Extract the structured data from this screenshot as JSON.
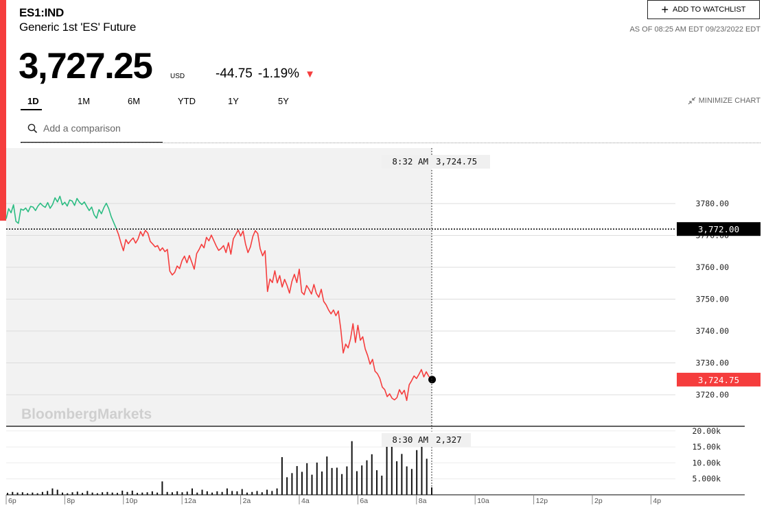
{
  "header": {
    "ticker": "ES1:IND",
    "name": "Generic 1st 'ES' Future",
    "watchlist_label": "ADD TO WATCHLIST",
    "as_of": "AS OF 08:25 AM EDT 09/23/2022 EDT",
    "price": "3,727.25",
    "currency": "USD",
    "change": "-44.75",
    "change_pct": "-1.19%"
  },
  "periods": [
    "1D",
    "1M",
    "6M",
    "YTD",
    "1Y",
    "5Y"
  ],
  "active_period": "1D",
  "minimize_label": "MINIMIZE CHART",
  "comparison_placeholder": "Add a comparison",
  "colors": {
    "up": "#2bbc82",
    "down": "#f53d3d",
    "accent": "#f53d3d"
  },
  "chart_data": [
    {
      "type": "line",
      "x_ticks": [
        "6p",
        "8p",
        "10p",
        "12a",
        "2a",
        "4a",
        "6a",
        "8a",
        "10a",
        "12p",
        "2p",
        "4p"
      ],
      "y_ticks": [
        3720,
        3730,
        3740,
        3750,
        3760,
        3770,
        3780
      ],
      "y_tick_labels": [
        "3720.00",
        "3730.00",
        "3740.00",
        "3750.00",
        "3760.00",
        "3770.00",
        "3780.00"
      ],
      "ylim": [
        3713,
        3793
      ],
      "prev_close": 3772.0,
      "prev_close_label": "3,772.00",
      "last_value": 3724.75,
      "last_label": "3,724.75",
      "crosshair": {
        "time": "8:32 AM",
        "value": "3,724.75"
      },
      "watermark": "BloombergMarkets",
      "series": [
        {
          "points": [
            [
              "6:00p",
              3775.2
            ],
            [
              "6:05p",
              3778.4
            ],
            [
              "6:10p",
              3777.1
            ],
            [
              "6:15p",
              3779.6
            ],
            [
              "6:20p",
              3774.4
            ],
            [
              "6:25p",
              3773.8
            ],
            [
              "6:30p",
              3778.3
            ],
            [
              "6:35p",
              3777.9
            ],
            [
              "6:40p",
              3778.6
            ],
            [
              "6:45p",
              3777.4
            ],
            [
              "6:50p",
              3779.1
            ],
            [
              "6:55p",
              3778.9
            ],
            [
              "7:00p",
              3777.8
            ],
            [
              "7:05p",
              3779.2
            ],
            [
              "7:10p",
              3780.1
            ],
            [
              "7:15p",
              3779.3
            ],
            [
              "7:20p",
              3778.8
            ],
            [
              "7:25p",
              3780.3
            ],
            [
              "7:30p",
              3778.5
            ],
            [
              "7:35p",
              3779.7
            ],
            [
              "7:40p",
              3781.8
            ],
            [
              "7:45p",
              3780.5
            ],
            [
              "7:50p",
              3782.3
            ],
            [
              "7:55p",
              3779.6
            ],
            [
              "8:00p",
              3780.4
            ],
            [
              "8:05p",
              3779.2
            ],
            [
              "8:10p",
              3781.1
            ],
            [
              "8:15p",
              3780.8
            ],
            [
              "8:20p",
              3779.4
            ],
            [
              "8:25p",
              3781.6
            ],
            [
              "8:30p",
              3780.4
            ],
            [
              "8:35p",
              3779.7
            ],
            [
              "8:40p",
              3780.5
            ],
            [
              "8:45p",
              3779.1
            ],
            [
              "8:50p",
              3777.8
            ],
            [
              "8:55p",
              3778.9
            ],
            [
              "9:00p",
              3776.5
            ],
            [
              "9:05p",
              3775.4
            ],
            [
              "9:10p",
              3778.1
            ],
            [
              "9:15p",
              3776.8
            ],
            [
              "9:20p",
              3778.7
            ],
            [
              "9:25p",
              3780.1
            ],
            [
              "9:30p",
              3778.4
            ],
            [
              "9:35p",
              3775.9
            ],
            [
              "9:40p",
              3774.1
            ],
            [
              "9:45p",
              3772.3
            ],
            [
              "9:50p",
              3770.3
            ],
            [
              "9:55p",
              3767.6
            ],
            [
              "10:00p",
              3765.2
            ],
            [
              "10:05p",
              3768.7
            ],
            [
              "10:10p",
              3767.4
            ],
            [
              "10:15p",
              3768.4
            ],
            [
              "10:20p",
              3769.2
            ],
            [
              "10:25p",
              3767.6
            ],
            [
              "10:30p",
              3768.9
            ],
            [
              "10:35p",
              3771.2
            ],
            [
              "10:40p",
              3769.8
            ],
            [
              "10:45p",
              3771.6
            ],
            [
              "10:50p",
              3770.7
            ],
            [
              "10:55p",
              3768.1
            ],
            [
              "11:00p",
              3767.3
            ],
            [
              "11:05p",
              3766.4
            ],
            [
              "11:10p",
              3766.8
            ],
            [
              "11:15p",
              3765.2
            ],
            [
              "11:20p",
              3766.1
            ],
            [
              "11:25p",
              3764.9
            ],
            [
              "11:30p",
              3765.6
            ],
            [
              "11:35p",
              3758.8
            ],
            [
              "11:40p",
              3757.6
            ],
            [
              "11:45p",
              3758.4
            ],
            [
              "11:50p",
              3760.4
            ],
            [
              "11:55p",
              3759.6
            ],
            [
              "12:00a",
              3762.1
            ],
            [
              "12:05a",
              3763.5
            ],
            [
              "12:10a",
              3761.4
            ],
            [
              "12:15a",
              3763.7
            ],
            [
              "12:20a",
              3761.6
            ],
            [
              "12:25a",
              3759.4
            ],
            [
              "12:30a",
              3764.3
            ],
            [
              "12:35a",
              3765.6
            ],
            [
              "12:40a",
              3767.2
            ],
            [
              "12:45a",
              3766.1
            ],
            [
              "12:50a",
              3769.4
            ],
            [
              "12:55a",
              3768.3
            ],
            [
              "1:00a",
              3770.1
            ],
            [
              "1:05a",
              3768.4
            ],
            [
              "1:10a",
              3766.7
            ],
            [
              "1:15a",
              3765.3
            ],
            [
              "1:20a",
              3765.9
            ],
            [
              "1:25a",
              3766.8
            ],
            [
              "1:30a",
              3764.6
            ],
            [
              "1:35a",
              3767.7
            ],
            [
              "1:40a",
              3764.1
            ],
            [
              "1:45a",
              3768.9
            ],
            [
              "1:50a",
              3770.3
            ],
            [
              "1:55a",
              3771.7
            ],
            [
              "2:00a",
              3769.8
            ],
            [
              "2:05a",
              3771.4
            ],
            [
              "2:10a",
              3767.3
            ],
            [
              "2:15a",
              3764.6
            ],
            [
              "2:20a",
              3766.4
            ],
            [
              "2:25a",
              3769.7
            ],
            [
              "2:30a",
              3771.5
            ],
            [
              "2:35a",
              3770.6
            ],
            [
              "2:40a",
              3765.8
            ],
            [
              "2:45a",
              3763.6
            ],
            [
              "2:50a",
              3765.2
            ],
            [
              "2:55a",
              3752.4
            ],
            [
              "3:00a",
              3756.3
            ],
            [
              "3:05a",
              3755.2
            ],
            [
              "3:10a",
              3758.9
            ],
            [
              "3:15a",
              3755.1
            ],
            [
              "3:20a",
              3757.4
            ],
            [
              "3:25a",
              3753.8
            ],
            [
              "3:30a",
              3756.2
            ],
            [
              "3:35a",
              3754.3
            ],
            [
              "3:40a",
              3751.9
            ],
            [
              "3:45a",
              3755.6
            ],
            [
              "3:50a",
              3757.8
            ],
            [
              "3:55a",
              3755.2
            ],
            [
              "4:00a",
              3759.4
            ],
            [
              "4:05a",
              3752.2
            ],
            [
              "4:10a",
              3751.4
            ],
            [
              "4:15a",
              3754.3
            ],
            [
              "4:20a",
              3753.1
            ],
            [
              "4:25a",
              3751.6
            ],
            [
              "4:30a",
              3754.6
            ],
            [
              "4:35a",
              3751.8
            ],
            [
              "4:40a",
              3750.6
            ],
            [
              "4:45a",
              3753.1
            ],
            [
              "4:50a",
              3749.3
            ],
            [
              "4:55a",
              3748.2
            ],
            [
              "5:00a",
              3746.6
            ],
            [
              "5:05a",
              3745.4
            ],
            [
              "5:10a",
              3746.6
            ],
            [
              "5:15a",
              3744.8
            ],
            [
              "5:20a",
              3746.3
            ],
            [
              "5:25a",
              3740.6
            ],
            [
              "5:30a",
              3733.1
            ],
            [
              "5:35a",
              3735.9
            ],
            [
              "5:40a",
              3734.7
            ],
            [
              "5:45a",
              3737.6
            ],
            [
              "5:50a",
              3742.3
            ],
            [
              "5:55a",
              3736.4
            ],
            [
              "6:00a",
              3741.8
            ],
            [
              "6:05a",
              3737.1
            ],
            [
              "6:10a",
              3738.2
            ],
            [
              "6:15a",
              3734.4
            ],
            [
              "6:20a",
              3732.3
            ],
            [
              "6:25a",
              3729.6
            ],
            [
              "6:30a",
              3731.1
            ],
            [
              "6:35a",
              3727.4
            ],
            [
              "6:40a",
              3726.6
            ],
            [
              "6:45a",
              3725.1
            ],
            [
              "6:50a",
              3722.4
            ],
            [
              "6:55a",
              3721.6
            ],
            [
              "7:00a",
              3719.4
            ],
            [
              "7:05a",
              3720.3
            ],
            [
              "7:10a",
              3718.9
            ],
            [
              "7:15a",
              3718.4
            ],
            [
              "7:20a",
              3719.1
            ],
            [
              "7:25a",
              3721.6
            ],
            [
              "7:30a",
              3720.2
            ],
            [
              "7:35a",
              3721.4
            ],
            [
              "7:40a",
              3718.2
            ],
            [
              "7:45a",
              3723.1
            ],
            [
              "7:50a",
              3724.4
            ],
            [
              "7:55a",
              3725.9
            ],
            [
              "8:00a",
              3725.1
            ],
            [
              "8:05a",
              3726.4
            ],
            [
              "8:10a",
              3727.9
            ],
            [
              "8:15a",
              3725.6
            ],
            [
              "8:20a",
              3727.2
            ],
            [
              "8:25a",
              3725.8
            ],
            [
              "8:32a",
              3724.75
            ]
          ]
        }
      ]
    },
    {
      "type": "bar",
      "y_tick_labels": [
        "5.000k",
        "10.00k",
        "15.00k",
        "20.00k"
      ],
      "y_ticks": [
        5000,
        10000,
        15000,
        20000
      ],
      "ylim": [
        0,
        24000
      ],
      "crosshair": {
        "time": "8:30 AM",
        "value": "2,327"
      },
      "series": [
        {
          "values": [
            600,
            900,
            700,
            800,
            500,
            700,
            500,
            900,
            1200,
            2000,
            1600,
            700,
            500,
            800,
            1000,
            600,
            1200,
            700,
            500,
            800,
            900,
            700,
            600,
            1300,
            900,
            1300,
            600,
            700,
            800,
            1100,
            700,
            4200,
            900,
            800,
            1100,
            800,
            1000,
            2000,
            700,
            1600,
            1100,
            700,
            1100,
            900,
            2000,
            1200,
            1100,
            1800,
            700,
            900,
            1200,
            800,
            1600,
            1200,
            2000,
            11800,
            5500,
            6800,
            9000,
            7200,
            9900,
            6300,
            10100,
            7300,
            12000,
            8400,
            8500,
            6500,
            8900,
            16800,
            7400,
            9200,
            10800,
            12700,
            7700,
            6000,
            17400,
            16400,
            10500,
            12800,
            8900,
            8100,
            14000,
            16200,
            11300,
            2327
          ]
        }
      ]
    }
  ]
}
